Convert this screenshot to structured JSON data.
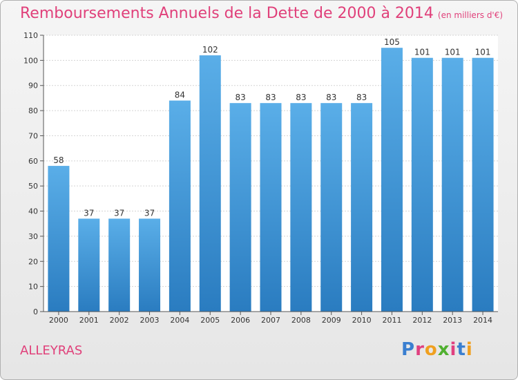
{
  "header": {
    "title": "Remboursements Annuels de la Dette de 2000 à 2014",
    "unit": "(en milliers d'€)"
  },
  "footer": {
    "commune": "ALLEYRAS",
    "logo_text": "Proxiti"
  },
  "colors": {
    "title": "#e0407a",
    "bar_top": "#5aaee8",
    "bar_bottom": "#2a7cc0",
    "logo": [
      "#3a7fd0",
      "#e04080",
      "#f0a020",
      "#50b030",
      "#e04080",
      "#3a7fd0",
      "#f0a020"
    ]
  },
  "chart_data": {
    "type": "bar",
    "categories": [
      "2000",
      "2001",
      "2002",
      "2003",
      "2004",
      "2005",
      "2006",
      "2007",
      "2008",
      "2009",
      "2010",
      "2011",
      "2012",
      "2013",
      "2014"
    ],
    "values": [
      58,
      37,
      37,
      37,
      84,
      102,
      83,
      83,
      83,
      83,
      83,
      105,
      101,
      101,
      101
    ],
    "ylim": [
      0,
      110
    ],
    "yticks": [
      0,
      10,
      20,
      30,
      40,
      50,
      60,
      70,
      80,
      90,
      100,
      110
    ],
    "grid": true
  }
}
